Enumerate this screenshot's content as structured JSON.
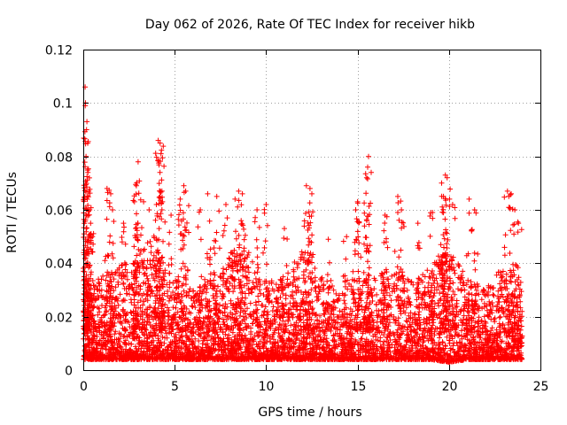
{
  "chart_data": {
    "type": "scatter",
    "title": "Day 062 of 2026, Rate Of TEC Index for receiver hikb",
    "xlabel": "GPS time / hours",
    "ylabel": "ROTI / TECUs",
    "xlim": [
      0,
      25
    ],
    "ylim": [
      0,
      0.12
    ],
    "xticks": [
      0,
      5,
      10,
      15,
      20,
      25
    ],
    "xtick_labels": [
      "0",
      "5",
      "10",
      "15",
      "20",
      "25"
    ],
    "yticks": [
      0,
      0.02,
      0.04,
      0.06,
      0.08,
      0.1,
      0.12
    ],
    "ytick_labels": [
      "0",
      "0.02",
      "0.04",
      "0.06",
      "0.08",
      "0.1",
      "0.12"
    ],
    "grid": true,
    "marker": "plus",
    "color": "#ff0000",
    "data_range_hours": [
      0,
      24
    ],
    "series": [
      {
        "name": "ROTI",
        "baseline_envelope": [
          [
            0.0,
            0.004,
            0.03
          ],
          [
            1.0,
            0.004,
            0.035
          ],
          [
            2.0,
            0.004,
            0.04
          ],
          [
            3.0,
            0.004,
            0.045
          ],
          [
            4.0,
            0.004,
            0.045
          ],
          [
            5.0,
            0.004,
            0.035
          ],
          [
            6.0,
            0.004,
            0.03
          ],
          [
            7.0,
            0.004,
            0.035
          ],
          [
            8.0,
            0.004,
            0.045
          ],
          [
            9.0,
            0.004,
            0.045
          ],
          [
            10.0,
            0.004,
            0.035
          ],
          [
            11.0,
            0.004,
            0.035
          ],
          [
            12.0,
            0.004,
            0.045
          ],
          [
            13.0,
            0.004,
            0.035
          ],
          [
            14.0,
            0.004,
            0.03
          ],
          [
            15.0,
            0.004,
            0.04
          ],
          [
            16.0,
            0.004,
            0.035
          ],
          [
            17.0,
            0.004,
            0.04
          ],
          [
            18.0,
            0.004,
            0.035
          ],
          [
            19.0,
            0.004,
            0.04
          ],
          [
            20.0,
            0.003,
            0.045
          ],
          [
            21.0,
            0.004,
            0.035
          ],
          [
            22.0,
            0.004,
            0.03
          ],
          [
            23.0,
            0.004,
            0.04
          ],
          [
            24.0,
            0.004,
            0.03
          ]
        ],
        "peaks": [
          [
            0.1,
            0.106
          ],
          [
            0.12,
            0.1
          ],
          [
            0.2,
            0.093
          ],
          [
            0.18,
            0.09
          ],
          [
            0.15,
            0.08
          ],
          [
            0.25,
            0.074
          ],
          [
            0.3,
            0.067
          ],
          [
            0.35,
            0.06
          ],
          [
            0.4,
            0.055
          ],
          [
            0.5,
            0.05
          ],
          [
            1.3,
            0.068
          ],
          [
            1.5,
            0.066
          ],
          [
            1.6,
            0.06
          ],
          [
            2.2,
            0.055
          ],
          [
            2.8,
            0.063
          ],
          [
            2.9,
            0.069
          ],
          [
            3.0,
            0.078
          ],
          [
            3.3,
            0.063
          ],
          [
            3.6,
            0.06
          ],
          [
            4.0,
            0.062
          ],
          [
            4.1,
            0.086
          ],
          [
            4.2,
            0.085
          ],
          [
            4.25,
            0.081
          ],
          [
            4.3,
            0.067
          ],
          [
            4.8,
            0.058
          ],
          [
            5.3,
            0.064
          ],
          [
            5.5,
            0.069
          ],
          [
            5.6,
            0.067
          ],
          [
            6.4,
            0.06
          ],
          [
            6.8,
            0.066
          ],
          [
            7.3,
            0.065
          ],
          [
            7.8,
            0.062
          ],
          [
            8.3,
            0.064
          ],
          [
            8.5,
            0.067
          ],
          [
            8.7,
            0.066
          ],
          [
            9.5,
            0.06
          ],
          [
            10.0,
            0.062
          ],
          [
            11.0,
            0.053
          ],
          [
            12.2,
            0.069
          ],
          [
            12.4,
            0.068
          ],
          [
            12.5,
            0.066
          ],
          [
            13.4,
            0.049
          ],
          [
            14.4,
            0.05
          ],
          [
            14.9,
            0.06
          ],
          [
            15.0,
            0.063
          ],
          [
            15.5,
            0.072
          ],
          [
            15.6,
            0.08
          ],
          [
            15.55,
            0.076
          ],
          [
            16.5,
            0.058
          ],
          [
            17.2,
            0.065
          ],
          [
            17.4,
            0.06
          ],
          [
            18.3,
            0.055
          ],
          [
            19.1,
            0.059
          ],
          [
            19.6,
            0.07
          ],
          [
            19.8,
            0.073
          ],
          [
            19.9,
            0.072
          ],
          [
            19.7,
            0.065
          ],
          [
            20.2,
            0.062
          ],
          [
            21.1,
            0.064
          ],
          [
            21.4,
            0.06
          ],
          [
            23.2,
            0.067
          ],
          [
            23.4,
            0.066
          ],
          [
            23.6,
            0.06
          ],
          [
            23.8,
            0.055
          ]
        ]
      }
    ]
  }
}
